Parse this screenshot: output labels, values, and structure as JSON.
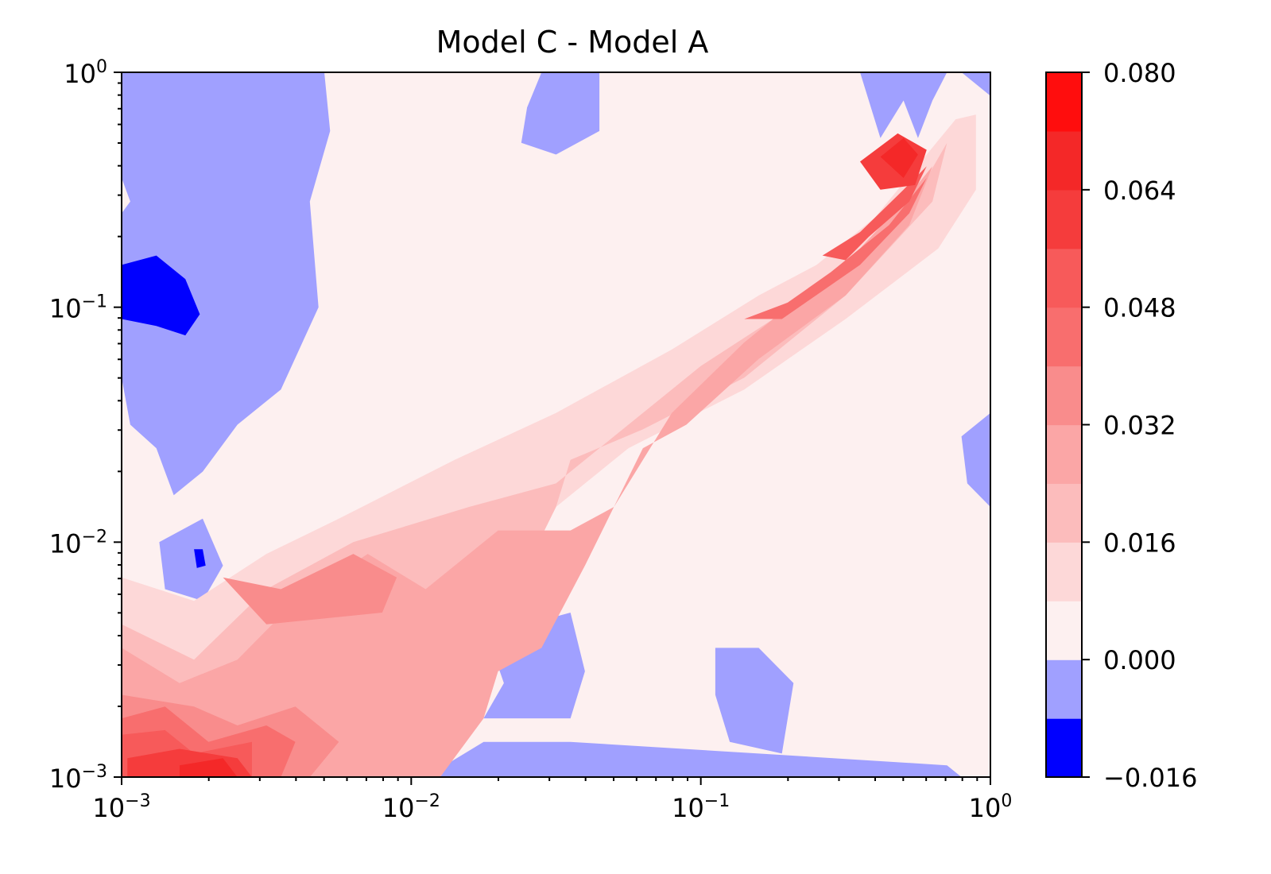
{
  "chart_data": {
    "type": "heatmap",
    "subtype": "filled-contour",
    "title": "Model C - Model A",
    "xlabel": "",
    "ylabel": "",
    "xscale": "log",
    "yscale": "log",
    "xlim": [
      0.001,
      1
    ],
    "ylim": [
      0.001,
      1
    ],
    "x_ticks": [
      {
        "value": 0.001,
        "base": "10",
        "exp": "−3"
      },
      {
        "value": 0.01,
        "base": "10",
        "exp": "−2"
      },
      {
        "value": 0.1,
        "base": "10",
        "exp": "−1"
      },
      {
        "value": 1,
        "base": "10",
        "exp": "0"
      }
    ],
    "y_ticks": [
      {
        "value": 0.001,
        "base": "10",
        "exp": "−3"
      },
      {
        "value": 0.01,
        "base": "10",
        "exp": "−2"
      },
      {
        "value": 0.1,
        "base": "10",
        "exp": "−1"
      },
      {
        "value": 1,
        "base": "10",
        "exp": "0"
      }
    ],
    "colorbar": {
      "levels": [
        -0.016,
        -0.008,
        0.0,
        0.008,
        0.016,
        0.024,
        0.032,
        0.04,
        0.048,
        0.056,
        0.064,
        0.072,
        0.08
      ],
      "colors": [
        "#0000ff",
        "#a0a0ff",
        "#fdf0f0",
        "#fdd8d8",
        "#fcbcbc",
        "#fba6a6",
        "#f98c8c",
        "#f86e6e",
        "#f75a5a",
        "#f53c3c",
        "#f42828",
        "#ff0d0d"
      ],
      "tick_labels": [
        "0.080",
        "0.064",
        "0.048",
        "0.032",
        "0.016",
        "0.000",
        "−0.016"
      ],
      "tick_values": [
        0.08,
        0.064,
        0.048,
        0.032,
        0.016,
        0.0,
        -0.016
      ]
    },
    "regions": [
      {
        "name": "zero-background",
        "level": 0.004,
        "points": [
          [
            -3,
            -3
          ],
          [
            0,
            -3
          ],
          [
            0,
            0
          ],
          [
            -3,
            0
          ]
        ]
      },
      {
        "name": "negative-top-left",
        "level": -0.004,
        "points": [
          [
            -3,
            0
          ],
          [
            -2.3,
            0
          ],
          [
            -2.28,
            -0.25
          ],
          [
            -2.35,
            -0.55
          ],
          [
            -2.32,
            -1.0
          ],
          [
            -2.45,
            -1.35
          ],
          [
            -2.6,
            -1.5
          ],
          [
            -2.72,
            -1.7
          ],
          [
            -2.82,
            -1.8
          ],
          [
            -2.85,
            -1.7
          ],
          [
            -2.88,
            -1.6
          ],
          [
            -2.97,
            -1.5
          ],
          [
            -3,
            -1.3
          ]
        ]
      },
      {
        "name": "negative-top-left-notch",
        "level": 0.004,
        "points": [
          [
            -3,
            -0.45
          ],
          [
            -2.97,
            -0.55
          ],
          [
            -3,
            -0.6
          ]
        ]
      },
      {
        "name": "negative-top-center",
        "level": -0.004,
        "points": [
          [
            -1.55,
            0
          ],
          [
            -1.35,
            0
          ],
          [
            -1.35,
            -0.25
          ],
          [
            -1.5,
            -0.35
          ],
          [
            -1.62,
            -0.3
          ],
          [
            -1.6,
            -0.15
          ]
        ]
      },
      {
        "name": "negative-top-right",
        "level": -0.004,
        "points": [
          [
            -0.45,
            0
          ],
          [
            -0.15,
            0
          ],
          [
            -0.2,
            -0.12
          ],
          [
            -0.25,
            -0.28
          ],
          [
            -0.3,
            -0.12
          ],
          [
            -0.38,
            -0.28
          ]
        ]
      },
      {
        "name": "negative-top-corner",
        "level": -0.004,
        "points": [
          [
            -0.1,
            0
          ],
          [
            0,
            0
          ],
          [
            0,
            -0.1
          ]
        ]
      },
      {
        "name": "negative-right-edge",
        "level": -0.004,
        "points": [
          [
            -0.1,
            -1.55
          ],
          [
            0,
            -1.45
          ],
          [
            0,
            -1.85
          ],
          [
            -0.08,
            -1.75
          ]
        ]
      },
      {
        "name": "negative-bottom-center",
        "level": -0.004,
        "points": [
          [
            -1.6,
            -2.35
          ],
          [
            -1.45,
            -2.3
          ],
          [
            -1.4,
            -2.55
          ],
          [
            -1.45,
            -2.75
          ],
          [
            -1.75,
            -2.75
          ],
          [
            -1.68,
            -2.6
          ],
          [
            -1.75,
            -2.35
          ]
        ]
      },
      {
        "name": "negative-bottom-right",
        "level": -0.004,
        "points": [
          [
            -0.95,
            -2.45
          ],
          [
            -0.8,
            -2.45
          ],
          [
            -0.68,
            -2.6
          ],
          [
            -0.72,
            -2.9
          ],
          [
            -0.9,
            -2.85
          ],
          [
            -0.95,
            -2.65
          ]
        ]
      },
      {
        "name": "negative-bottom-strip",
        "level": -0.004,
        "points": [
          [
            -1.95,
            -3
          ],
          [
            -0.1,
            -3
          ],
          [
            -0.15,
            -2.95
          ],
          [
            -0.8,
            -2.9
          ],
          [
            -1.45,
            -2.85
          ],
          [
            -1.75,
            -2.85
          ]
        ]
      },
      {
        "name": "negative-left-island",
        "level": -0.004,
        "points": [
          [
            -2.87,
            -2.0
          ],
          [
            -2.72,
            -1.9
          ],
          [
            -2.65,
            -2.1
          ],
          [
            -2.72,
            -2.25
          ],
          [
            -2.85,
            -2.2
          ]
        ]
      },
      {
        "name": "strong-negative-left",
        "level": -0.012,
        "points": [
          [
            -3,
            -0.82
          ],
          [
            -2.88,
            -0.78
          ],
          [
            -2.78,
            -0.88
          ],
          [
            -2.73,
            -1.03
          ],
          [
            -2.78,
            -1.12
          ],
          [
            -2.88,
            -1.08
          ],
          [
            -3,
            -1.05
          ]
        ]
      },
      {
        "name": "strong-negative-small",
        "level": -0.012,
        "points": [
          [
            -2.75,
            -2.03
          ],
          [
            -2.72,
            -2.03
          ],
          [
            -2.71,
            -2.1
          ],
          [
            -2.74,
            -2.11
          ]
        ]
      },
      {
        "name": "diagonal-band-1",
        "level": 0.012,
        "points": [
          [
            -3,
            -2.15
          ],
          [
            -2.75,
            -2.25
          ],
          [
            -2.5,
            -2.05
          ],
          [
            -2.25,
            -1.9
          ],
          [
            -1.85,
            -1.65
          ],
          [
            -1.5,
            -1.45
          ],
          [
            -1.1,
            -1.18
          ],
          [
            -0.8,
            -0.95
          ],
          [
            -0.6,
            -0.82
          ],
          [
            -0.4,
            -0.62
          ],
          [
            -0.22,
            -0.35
          ],
          [
            -0.12,
            -0.2
          ],
          [
            -0.05,
            -0.18
          ],
          [
            -0.05,
            -0.5
          ],
          [
            -0.18,
            -0.75
          ],
          [
            -0.5,
            -1.05
          ],
          [
            -0.85,
            -1.35
          ],
          [
            -1.25,
            -1.6
          ],
          [
            -1.5,
            -1.85
          ],
          [
            -1.6,
            -2.1
          ],
          [
            -1.7,
            -2.35
          ],
          [
            -1.85,
            -2.75
          ],
          [
            -1.9,
            -3
          ],
          [
            -3,
            -3
          ]
        ]
      },
      {
        "name": "diagonal-band-2",
        "level": 0.02,
        "points": [
          [
            -3,
            -2.35
          ],
          [
            -2.75,
            -2.5
          ],
          [
            -2.5,
            -2.2
          ],
          [
            -2.2,
            -2.0
          ],
          [
            -1.8,
            -1.85
          ],
          [
            -1.5,
            -1.75
          ],
          [
            -1.3,
            -1.55
          ],
          [
            -1.0,
            -1.25
          ],
          [
            -0.75,
            -1.05
          ],
          [
            -0.55,
            -0.88
          ],
          [
            -0.35,
            -0.7
          ],
          [
            -0.22,
            -0.45
          ],
          [
            -0.15,
            -0.3
          ],
          [
            -0.2,
            -0.55
          ],
          [
            -0.5,
            -0.95
          ],
          [
            -0.85,
            -1.3
          ],
          [
            -1.2,
            -1.52
          ],
          [
            -1.45,
            -1.65
          ],
          [
            -1.5,
            -1.85
          ],
          [
            -1.6,
            -2.1
          ],
          [
            -1.65,
            -2.35
          ],
          [
            -1.78,
            -2.6
          ],
          [
            -1.9,
            -3
          ],
          [
            -3,
            -3
          ]
        ]
      },
      {
        "name": "diagonal-band-3",
        "level": 0.028,
        "points": [
          [
            -3,
            -2.45
          ],
          [
            -2.8,
            -2.6
          ],
          [
            -2.6,
            -2.5
          ],
          [
            -2.4,
            -2.25
          ],
          [
            -2.15,
            -2.05
          ],
          [
            -1.95,
            -2.2
          ],
          [
            -1.8,
            -2.05
          ],
          [
            -1.7,
            -1.95
          ],
          [
            -1.45,
            -1.95
          ],
          [
            -1.3,
            -1.85
          ],
          [
            -1.1,
            -1.45
          ],
          [
            -0.85,
            -1.15
          ],
          [
            -0.65,
            -0.95
          ],
          [
            -0.45,
            -0.75
          ],
          [
            -0.3,
            -0.55
          ],
          [
            -0.2,
            -0.4
          ],
          [
            -0.28,
            -0.65
          ],
          [
            -0.5,
            -0.95
          ],
          [
            -0.8,
            -1.22
          ],
          [
            -1.05,
            -1.5
          ],
          [
            -1.2,
            -1.6
          ],
          [
            -1.4,
            -2.1
          ],
          [
            -1.55,
            -2.45
          ],
          [
            -1.7,
            -2.55
          ],
          [
            -1.75,
            -2.75
          ],
          [
            -1.9,
            -3
          ],
          [
            -3,
            -3
          ]
        ]
      },
      {
        "name": "diagonal-core-1",
        "level": 0.036,
        "points": [
          [
            -2.65,
            -2.15
          ],
          [
            -2.45,
            -2.2
          ],
          [
            -2.2,
            -2.05
          ],
          [
            -2.05,
            -2.15
          ],
          [
            -2.1,
            -2.3
          ],
          [
            -2.5,
            -2.35
          ]
        ]
      },
      {
        "name": "diagonal-core-2",
        "level": 0.044,
        "points": [
          [
            -0.85,
            -1.05
          ],
          [
            -0.7,
            -0.98
          ],
          [
            -0.55,
            -0.85
          ],
          [
            -0.35,
            -0.65
          ],
          [
            -0.22,
            -0.45
          ],
          [
            -0.28,
            -0.6
          ],
          [
            -0.45,
            -0.82
          ],
          [
            -0.72,
            -1.05
          ]
        ]
      },
      {
        "name": "diagonal-core-3",
        "level": 0.052,
        "points": [
          [
            -0.58,
            -0.78
          ],
          [
            -0.45,
            -0.68
          ],
          [
            -0.3,
            -0.5
          ],
          [
            -0.22,
            -0.4
          ],
          [
            -0.28,
            -0.55
          ],
          [
            -0.42,
            -0.7
          ],
          [
            -0.5,
            -0.8
          ]
        ]
      },
      {
        "name": "peak-top-right",
        "level": 0.06,
        "points": [
          [
            -0.45,
            -0.38
          ],
          [
            -0.32,
            -0.26
          ],
          [
            -0.22,
            -0.33
          ],
          [
            -0.26,
            -0.48
          ],
          [
            -0.38,
            -0.5
          ]
        ]
      },
      {
        "name": "peak-top-right-inner",
        "level": 0.068,
        "points": [
          [
            -0.38,
            -0.36
          ],
          [
            -0.3,
            -0.28
          ],
          [
            -0.25,
            -0.35
          ],
          [
            -0.3,
            -0.45
          ]
        ]
      },
      {
        "name": "bottom-left-hot-1",
        "level": 0.036,
        "points": [
          [
            -3,
            -2.65
          ],
          [
            -2.75,
            -2.7
          ],
          [
            -2.6,
            -2.78
          ],
          [
            -2.4,
            -2.7
          ],
          [
            -2.25,
            -2.85
          ],
          [
            -2.35,
            -3
          ],
          [
            -3,
            -3
          ]
        ]
      },
      {
        "name": "bottom-left-hot-2",
        "level": 0.044,
        "points": [
          [
            -3,
            -2.75
          ],
          [
            -2.85,
            -2.7
          ],
          [
            -2.7,
            -2.85
          ],
          [
            -2.5,
            -2.78
          ],
          [
            -2.4,
            -2.85
          ],
          [
            -2.45,
            -3
          ],
          [
            -3,
            -3
          ]
        ]
      },
      {
        "name": "bottom-left-hot-3",
        "level": 0.052,
        "points": [
          [
            -3,
            -2.82
          ],
          [
            -2.85,
            -2.8
          ],
          [
            -2.75,
            -2.9
          ],
          [
            -2.55,
            -2.85
          ],
          [
            -2.55,
            -3
          ],
          [
            -3,
            -3
          ]
        ]
      },
      {
        "name": "bottom-left-hot-4",
        "level": 0.06,
        "points": [
          [
            -2.98,
            -2.92
          ],
          [
            -2.8,
            -2.88
          ],
          [
            -2.6,
            -2.92
          ],
          [
            -2.55,
            -3
          ],
          [
            -2.98,
            -3
          ]
        ]
      },
      {
        "name": "bottom-left-hot-5",
        "level": 0.068,
        "points": [
          [
            -2.8,
            -2.95
          ],
          [
            -2.65,
            -2.92
          ],
          [
            -2.6,
            -3
          ],
          [
            -2.8,
            -3
          ]
        ]
      }
    ]
  }
}
